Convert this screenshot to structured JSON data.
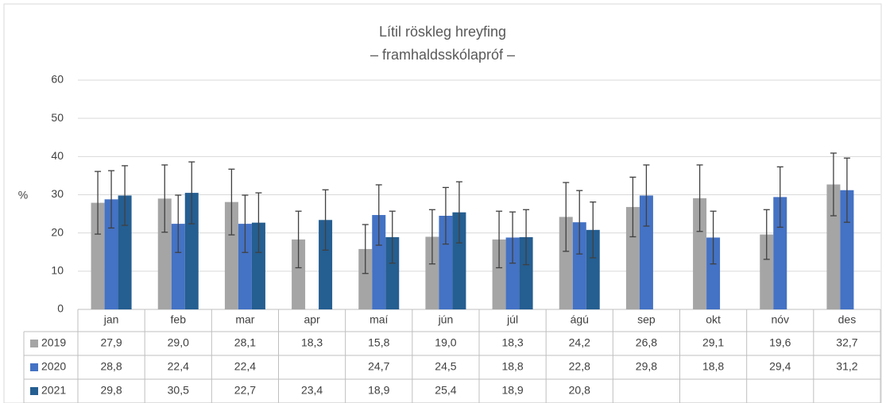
{
  "chart_data": {
    "type": "bar",
    "title": "Lítil röskleg hreyfing",
    "subtitle": "– framhaldsskólapróf –",
    "y_label": "%",
    "categories": [
      "jan",
      "feb",
      "mar",
      "apr",
      "maí",
      "jún",
      "júl",
      "ágú",
      "sep",
      "okt",
      "nóv",
      "des"
    ],
    "ylim": [
      0,
      60
    ],
    "yticks": [
      0,
      10,
      20,
      30,
      40,
      50,
      60
    ],
    "grid": true,
    "series": [
      {
        "name": "2019",
        "color": "#a5a5a5",
        "values": [
          27.9,
          29.0,
          28.1,
          18.3,
          15.8,
          19.0,
          18.3,
          24.2,
          26.8,
          29.1,
          19.6,
          32.7
        ],
        "value_labels": [
          "27,9",
          "29,0",
          "28,1",
          "18,3",
          "15,8",
          "19,0",
          "18,3",
          "24,2",
          "26,8",
          "29,1",
          "19,6",
          "32,7"
        ],
        "errors": [
          8.2,
          8.8,
          8.6,
          7.4,
          6.4,
          7.1,
          7.4,
          9.0,
          7.8,
          8.7,
          6.5,
          8.2
        ]
      },
      {
        "name": "2020",
        "color": "#4472c4",
        "values": [
          28.8,
          22.4,
          22.4,
          null,
          24.7,
          24.5,
          18.8,
          22.8,
          29.8,
          18.8,
          29.4,
          31.2
        ],
        "value_labels": [
          "28,8",
          "22,4",
          "22,4",
          null,
          "24,7",
          "24,5",
          "18,8",
          "22,8",
          "29,8",
          "18,8",
          "29,4",
          "31,2"
        ],
        "errors": [
          7.5,
          7.5,
          7.5,
          null,
          7.9,
          7.4,
          6.7,
          8.3,
          8.0,
          6.9,
          7.9,
          8.4
        ]
      },
      {
        "name": "2021",
        "color": "#255e91",
        "values": [
          29.8,
          30.5,
          22.7,
          23.4,
          18.9,
          25.4,
          18.9,
          20.8,
          null,
          null,
          null,
          null
        ],
        "value_labels": [
          "29,8",
          "30,5",
          "22,7",
          "23,4",
          "18,9",
          "25,4",
          "18,9",
          "20,8",
          null,
          null,
          null,
          null
        ],
        "errors": [
          7.8,
          8.1,
          7.8,
          7.9,
          6.8,
          8.0,
          7.2,
          7.3,
          null,
          null,
          null,
          null
        ]
      }
    ]
  }
}
